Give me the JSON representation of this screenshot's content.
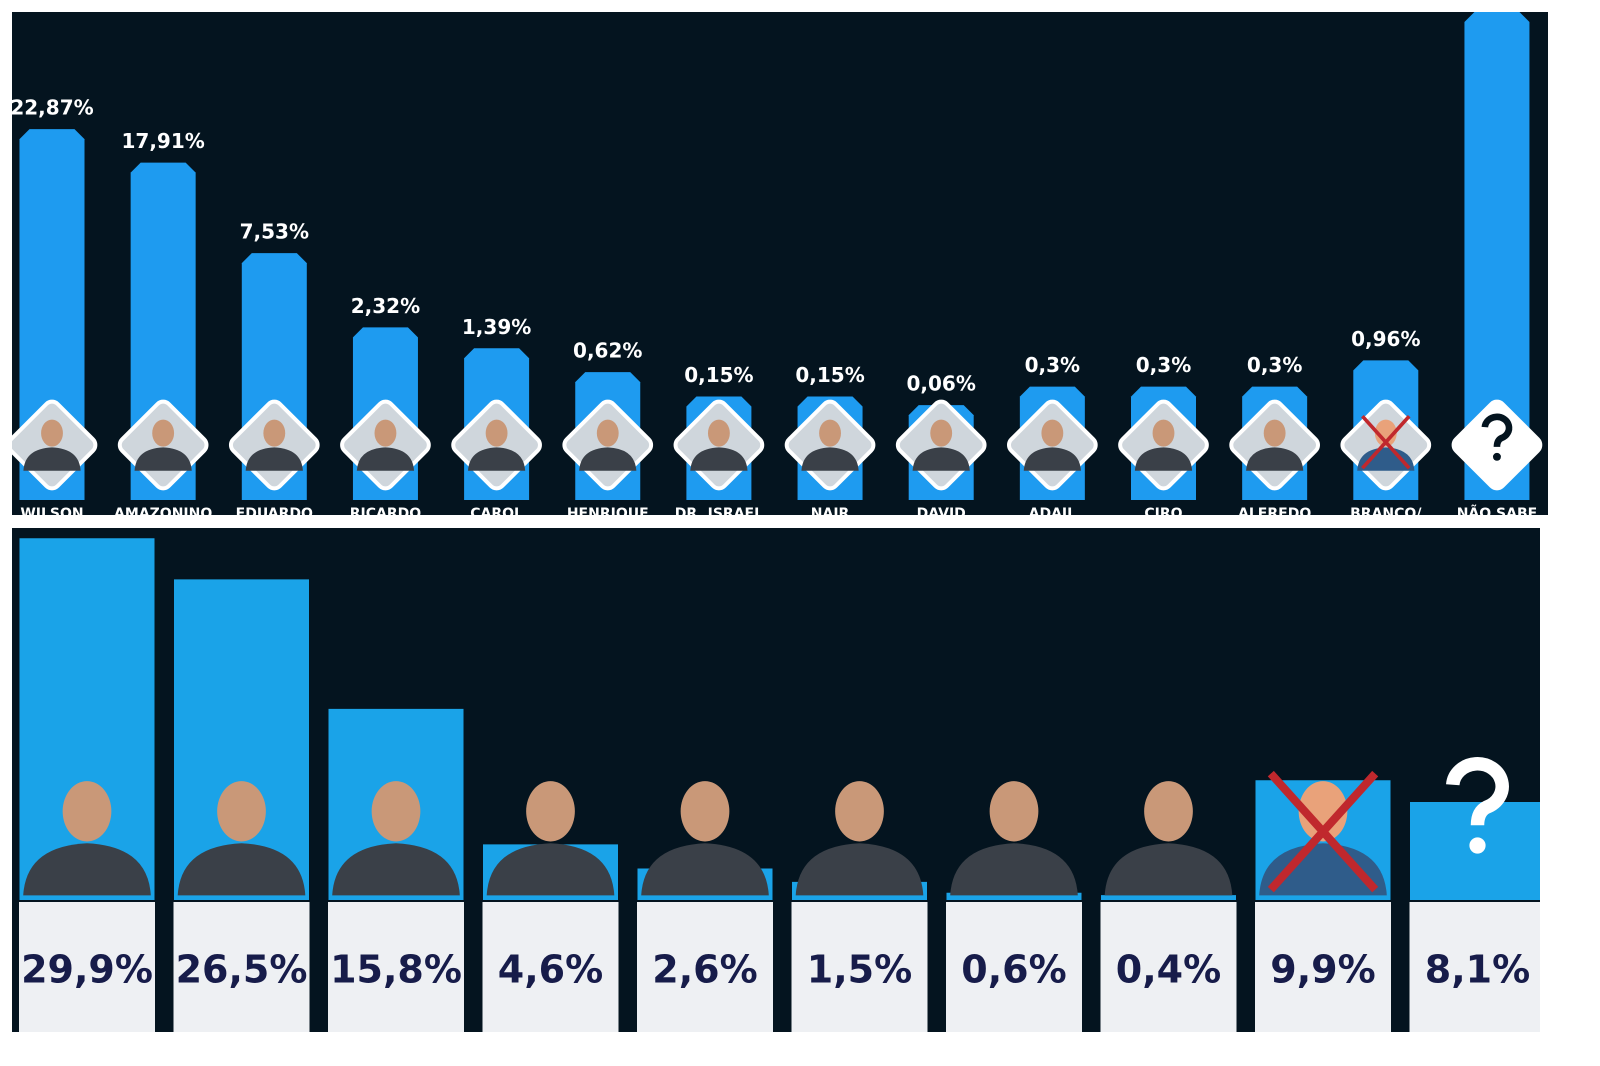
{
  "chart_data": [
    {
      "type": "bar",
      "categories": [
        "WILSON",
        "AMAZONINO",
        "EDUARDO",
        "RICARDO",
        "CAROL",
        "HENRIQUE",
        "DR. ISRAEL",
        "NAIR",
        "DAVID",
        "ADAIL",
        "CIRO",
        "ALFREDO",
        "BRANCO/",
        "NÃO SABE"
      ],
      "values": [
        22.87,
        17.91,
        7.53,
        2.32,
        1.39,
        0.62,
        0.15,
        0.15,
        0.06,
        0.3,
        0.3,
        0.3,
        0.96,
        45
      ],
      "value_labels": [
        "22,87%",
        "17,91%",
        "7,53%",
        "2,32%",
        "1,39%",
        "0,62%",
        "0,15%",
        "0,15%",
        "0,06%",
        "0,3%",
        "0,3%",
        "0,3%",
        "0,96%",
        null
      ],
      "color": "#1e9bf0",
      "scale": "sqrt",
      "ylim": [
        0,
        45
      ]
    },
    {
      "type": "bar",
      "values": [
        29.9,
        26.5,
        15.8,
        4.6,
        2.6,
        1.5,
        0.6,
        0.4,
        9.9,
        8.1
      ],
      "value_labels": [
        "29,9%",
        "26,5%",
        "15,8%",
        "4,6%",
        "2,6%",
        "1,5%",
        "0,6%",
        "0,4%",
        "9,9%",
        "8,1%"
      ],
      "color": "#1aa3e8",
      "ylim": [
        0,
        30
      ]
    }
  ]
}
